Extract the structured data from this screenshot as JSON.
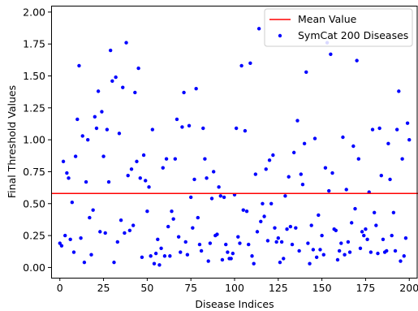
{
  "chart_data": {
    "type": "scatter",
    "xlabel": "Disease Indices",
    "ylabel": "Final Threshold Values",
    "xlim": [
      -5,
      205
    ],
    "ylim": [
      -0.08,
      2.05
    ],
    "x_ticks": [
      0,
      25,
      50,
      75,
      100,
      125,
      150,
      175,
      200
    ],
    "y_ticks": [
      0.0,
      0.25,
      0.5,
      0.75,
      1.0,
      1.25,
      1.5,
      1.75,
      2.0
    ],
    "y_tick_labels": [
      "0.00",
      "0.25",
      "0.50",
      "0.75",
      "1.00",
      "1.25",
      "1.50",
      "1.75",
      "2.00"
    ],
    "grid": false,
    "legend_position": "top-right",
    "mean_line": {
      "name": "Mean Value",
      "y": 0.58,
      "color": "#ff0000"
    },
    "series": [
      {
        "name": "SymCat 200 Diseases",
        "color": "#0000ff",
        "points": [
          [
            0,
            0.19
          ],
          [
            1,
            0.17
          ],
          [
            2,
            0.83
          ],
          [
            3,
            0.25
          ],
          [
            4,
            0.74
          ],
          [
            5,
            0.7
          ],
          [
            6,
            0.22
          ],
          [
            7,
            0.51
          ],
          [
            8,
            0.12
          ],
          [
            9,
            0.87
          ],
          [
            10,
            1.16
          ],
          [
            11,
            1.58
          ],
          [
            12,
            0.23
          ],
          [
            13,
            1.03
          ],
          [
            14,
            0.04
          ],
          [
            15,
            0.67
          ],
          [
            16,
            1.0
          ],
          [
            17,
            0.39
          ],
          [
            18,
            0.1
          ],
          [
            19,
            0.45
          ],
          [
            20,
            1.18
          ],
          [
            21,
            1.09
          ],
          [
            22,
            1.38
          ],
          [
            23,
            0.28
          ],
          [
            24,
            1.22
          ],
          [
            25,
            0.87
          ],
          [
            26,
            0.27
          ],
          [
            27,
            1.08
          ],
          [
            28,
            0.67
          ],
          [
            29,
            1.7
          ],
          [
            30,
            1.46
          ],
          [
            31,
            0.04
          ],
          [
            32,
            1.49
          ],
          [
            33,
            0.2
          ],
          [
            34,
            1.05
          ],
          [
            35,
            0.37
          ],
          [
            36,
            1.41
          ],
          [
            37,
            0.27
          ],
          [
            38,
            1.76
          ],
          [
            39,
            0.72
          ],
          [
            40,
            0.29
          ],
          [
            41,
            0.77
          ],
          [
            42,
            0.33
          ],
          [
            43,
            1.37
          ],
          [
            44,
            0.83
          ],
          [
            45,
            1.56
          ],
          [
            46,
            0.7
          ],
          [
            47,
            0.08
          ],
          [
            48,
            0.88
          ],
          [
            49,
            0.68
          ],
          [
            50,
            0.44
          ],
          [
            51,
            0.63
          ],
          [
            52,
            0.09
          ],
          [
            53,
            1.08
          ],
          [
            54,
            0.03
          ],
          [
            55,
            0.11
          ],
          [
            56,
            0.22
          ],
          [
            57,
            0.02
          ],
          [
            58,
            0.15
          ],
          [
            59,
            0.78
          ],
          [
            60,
            0.09
          ],
          [
            61,
            0.85
          ],
          [
            62,
            0.32
          ],
          [
            63,
            0.09
          ],
          [
            64,
            0.44
          ],
          [
            65,
            0.38
          ],
          [
            66,
            0.85
          ],
          [
            67,
            1.16
          ],
          [
            68,
            0.24
          ],
          [
            69,
            0.12
          ],
          [
            70,
            1.1
          ],
          [
            71,
            1.37
          ],
          [
            72,
            0.2
          ],
          [
            73,
            0.1
          ],
          [
            74,
            1.11
          ],
          [
            75,
            0.55
          ],
          [
            76,
            0.31
          ],
          [
            77,
            0.69
          ],
          [
            78,
            1.4
          ],
          [
            79,
            0.39
          ],
          [
            80,
            0.18
          ],
          [
            81,
            0.13
          ],
          [
            82,
            1.09
          ],
          [
            83,
            0.85
          ],
          [
            84,
            0.7
          ],
          [
            85,
            0.05
          ],
          [
            86,
            0.19
          ],
          [
            87,
            0.54
          ],
          [
            88,
            0.75
          ],
          [
            89,
            0.25
          ],
          [
            90,
            0.26
          ],
          [
            91,
            0.63
          ],
          [
            92,
            0.56
          ],
          [
            93,
            0.06
          ],
          [
            94,
            0.55
          ],
          [
            95,
            0.18
          ],
          [
            96,
            0.12
          ],
          [
            97,
            0.07
          ],
          [
            98,
            0.07
          ],
          [
            99,
            0.11
          ],
          [
            100,
            0.57
          ],
          [
            101,
            1.09
          ],
          [
            102,
            0.24
          ],
          [
            103,
            0.19
          ],
          [
            104,
            1.58
          ],
          [
            105,
            0.45
          ],
          [
            106,
            1.07
          ],
          [
            107,
            0.44
          ],
          [
            108,
            0.18
          ],
          [
            109,
            1.6
          ],
          [
            110,
            0.09
          ],
          [
            111,
            0.03
          ],
          [
            112,
            0.73
          ],
          [
            113,
            0.28
          ],
          [
            114,
            1.87
          ],
          [
            115,
            0.36
          ],
          [
            116,
            0.5
          ],
          [
            117,
            0.4
          ],
          [
            118,
            0.77
          ],
          [
            119,
            0.21
          ],
          [
            120,
            0.84
          ],
          [
            121,
            0.5
          ],
          [
            122,
            0.88
          ],
          [
            123,
            0.31
          ],
          [
            124,
            0.2
          ],
          [
            125,
            0.23
          ],
          [
            126,
            0.04
          ],
          [
            127,
            0.2
          ],
          [
            128,
            0.07
          ],
          [
            129,
            0.56
          ],
          [
            130,
            0.3
          ],
          [
            131,
            0.71
          ],
          [
            132,
            0.32
          ],
          [
            133,
            0.18
          ],
          [
            134,
            0.9
          ],
          [
            135,
            0.31
          ],
          [
            136,
            1.15
          ],
          [
            137,
            0.13
          ],
          [
            138,
            0.73
          ],
          [
            139,
            0.65
          ],
          [
            140,
            0.97
          ],
          [
            141,
            1.53
          ],
          [
            142,
            0.19
          ],
          [
            143,
            0.03
          ],
          [
            144,
            0.33
          ],
          [
            145,
            0.14
          ],
          [
            146,
            1.01
          ],
          [
            147,
            0.08
          ],
          [
            148,
            0.41
          ],
          [
            149,
            0.14
          ],
          [
            150,
            0.25
          ],
          [
            151,
            0.1
          ],
          [
            152,
            0.78
          ],
          [
            153,
            1.76
          ],
          [
            154,
            0.6
          ],
          [
            155,
            1.67
          ],
          [
            156,
            0.74
          ],
          [
            157,
            0.3
          ],
          [
            158,
            0.29
          ],
          [
            159,
            0.06
          ],
          [
            160,
            0.13
          ],
          [
            161,
            0.19
          ],
          [
            162,
            1.02
          ],
          [
            163,
            0.1
          ],
          [
            164,
            0.61
          ],
          [
            165,
            0.2
          ],
          [
            166,
            0.12
          ],
          [
            167,
            0.35
          ],
          [
            168,
            0.95
          ],
          [
            169,
            0.46
          ],
          [
            170,
            1.62
          ],
          [
            171,
            0.85
          ],
          [
            172,
            0.15
          ],
          [
            173,
            0.28
          ],
          [
            174,
            0.25
          ],
          [
            175,
            0.3
          ],
          [
            176,
            0.22
          ],
          [
            177,
            0.59
          ],
          [
            178,
            0.12
          ],
          [
            179,
            1.08
          ],
          [
            180,
            0.43
          ],
          [
            181,
            0.33
          ],
          [
            182,
            0.11
          ],
          [
            183,
            1.09
          ],
          [
            184,
            0.72
          ],
          [
            185,
            0.22
          ],
          [
            186,
            0.12
          ],
          [
            187,
            0.13
          ],
          [
            188,
            0.97
          ],
          [
            189,
            0.69
          ],
          [
            190,
            0.25
          ],
          [
            191,
            0.43
          ],
          [
            192,
            0.13
          ],
          [
            193,
            1.08
          ],
          [
            194,
            1.38
          ],
          [
            195,
            0.05
          ],
          [
            196,
            0.85
          ],
          [
            197,
            0.09
          ],
          [
            198,
            0.23
          ],
          [
            199,
            1.13
          ],
          [
            200,
            1.0
          ]
        ]
      }
    ]
  }
}
